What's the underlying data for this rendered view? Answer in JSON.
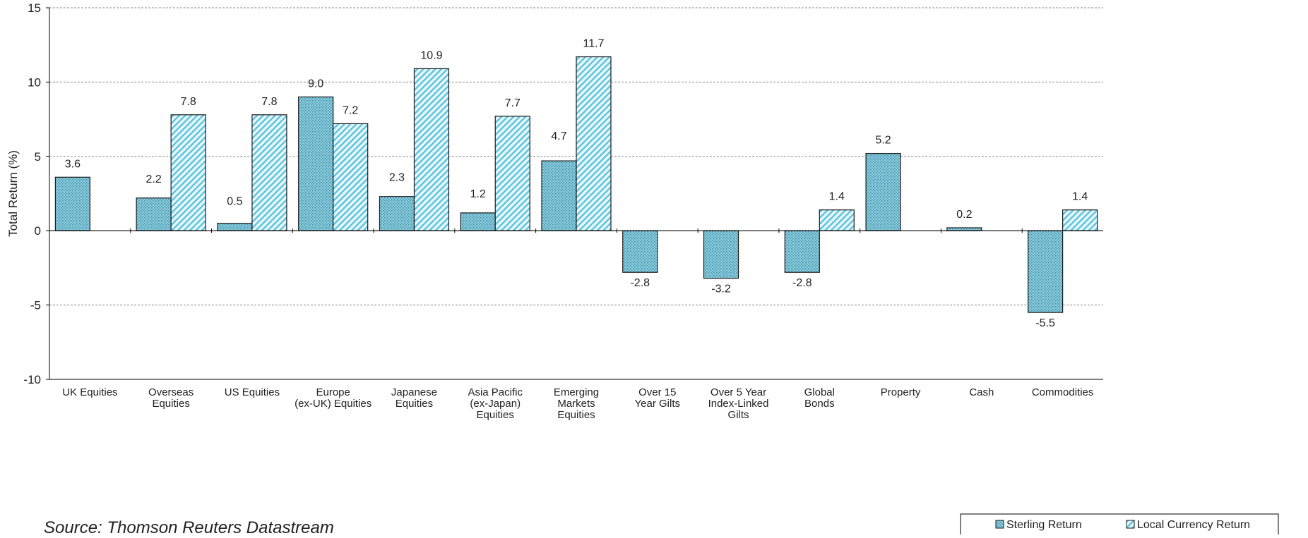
{
  "chart_data": {
    "type": "bar",
    "title": "",
    "xlabel": "",
    "ylabel": "Total Return (%)",
    "ylim": [
      -10,
      15
    ],
    "yticks": [
      -10,
      -5,
      0,
      5,
      10,
      15
    ],
    "grid": "horizontal dashed",
    "legend_position": "bottom-right",
    "categories": [
      [
        "UK Equities"
      ],
      [
        "Overseas",
        "Equities"
      ],
      [
        "US Equities"
      ],
      [
        "Europe",
        "(ex-UK) Equities"
      ],
      [
        "Japanese",
        "Equities"
      ],
      [
        "Asia Pacific",
        "(ex-Japan)",
        "Equities"
      ],
      [
        "Emerging",
        "Markets",
        "Equities"
      ],
      [
        "Over 15",
        "Year Gilts"
      ],
      [
        "Over 5 Year",
        "Index-Linked",
        "Gilts"
      ],
      [
        "Global",
        "Bonds"
      ],
      [
        "Property"
      ],
      [
        "Cash"
      ],
      [
        "Commodities"
      ]
    ],
    "series": [
      {
        "name": "Sterling Return",
        "values": [
          3.6,
          2.2,
          0.5,
          9.0,
          2.3,
          1.2,
          4.7,
          -2.8,
          -3.2,
          -2.8,
          5.2,
          0.2,
          -5.5
        ]
      },
      {
        "name": "Local Currency Return",
        "values": [
          null,
          7.8,
          7.8,
          7.2,
          10.9,
          7.7,
          11.7,
          null,
          null,
          1.4,
          null,
          null,
          1.4
        ]
      }
    ],
    "colors": {
      "sterling_fill": "#8fcfe0",
      "sterling_dot": "#3d8fa8",
      "local_fill": "#e8f7fb",
      "local_hatch": "#5cc3dd",
      "bar_border": "#1a1a1a",
      "grid": "#888888",
      "axis": "#000000"
    }
  },
  "source_note": "Source: Thomson Reuters Datastream"
}
